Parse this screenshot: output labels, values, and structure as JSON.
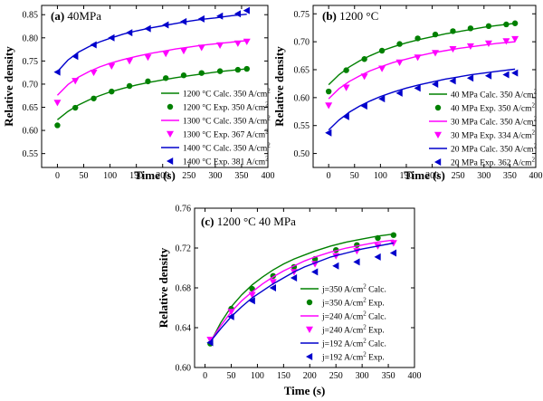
{
  "chart_data": [
    {
      "type": "line",
      "panel_label": "(a)",
      "title": "40MPa",
      "xlabel": "Time (s)",
      "ylabel": "Relative density",
      "xlim": [
        -30,
        400
      ],
      "ylim": [
        0.52,
        0.87
      ],
      "xticks": [
        0,
        50,
        100,
        150,
        200,
        250,
        300,
        350,
        400
      ],
      "yticks": [
        0.55,
        0.6,
        0.65,
        0.7,
        0.75,
        0.8,
        0.85
      ],
      "x_tick_labels": [
        "0",
        "50",
        "100",
        "150",
        "200",
        "250",
        "300",
        "350",
        "400"
      ],
      "y_tick_labels": [
        "0.55",
        "0.60",
        "0.65",
        "0.70",
        "0.75",
        "0.80",
        "0.85"
      ],
      "legend_position": "bottom-right",
      "series": [
        {
          "name": "1200 °C Calc. 350 A/cm²",
          "kind": "line",
          "color": "#008000",
          "x": [
            0,
            20,
            40,
            60,
            80,
            100,
            125,
            150,
            175,
            200,
            225,
            250,
            275,
            300,
            325,
            360
          ],
          "y": [
            0.623,
            0.641,
            0.655,
            0.666,
            0.675,
            0.683,
            0.691,
            0.698,
            0.704,
            0.709,
            0.714,
            0.718,
            0.722,
            0.726,
            0.729,
            0.733
          ]
        },
        {
          "name": "1200 °C Exp. 350 A/cm²",
          "kind": "marker",
          "marker": "circle",
          "color": "#008000",
          "x": [
            0,
            34,
            69,
            103,
            137,
            172,
            206,
            240,
            274,
            309,
            343,
            360
          ],
          "y": [
            0.611,
            0.649,
            0.669,
            0.684,
            0.696,
            0.706,
            0.713,
            0.719,
            0.724,
            0.728,
            0.731,
            0.733
          ]
        },
        {
          "name": "1300 °C Calc. 350 A/cm²",
          "kind": "line",
          "color": "#ff00ff",
          "x": [
            0,
            20,
            40,
            60,
            80,
            100,
            125,
            150,
            175,
            200,
            225,
            250,
            275,
            300,
            325,
            360
          ],
          "y": [
            0.676,
            0.699,
            0.715,
            0.727,
            0.737,
            0.745,
            0.753,
            0.76,
            0.766,
            0.771,
            0.776,
            0.78,
            0.784,
            0.787,
            0.79,
            0.794
          ]
        },
        {
          "name": "1300 °C Exp. 367 A/cm²",
          "kind": "marker",
          "marker": "triangle-down",
          "color": "#ff00ff",
          "x": [
            0,
            34,
            69,
            103,
            137,
            172,
            206,
            240,
            274,
            309,
            343,
            360
          ],
          "y": [
            0.66,
            0.707,
            0.725,
            0.739,
            0.75,
            0.758,
            0.766,
            0.772,
            0.779,
            0.784,
            0.788,
            0.792
          ]
        },
        {
          "name": "1400 °C Calc. 350 A/cm²",
          "kind": "line",
          "color": "#0000cc",
          "x": [
            0,
            20,
            40,
            60,
            80,
            100,
            125,
            150,
            175,
            200,
            225,
            250,
            275,
            300,
            325,
            360
          ],
          "y": [
            0.727,
            0.752,
            0.769,
            0.781,
            0.791,
            0.799,
            0.808,
            0.815,
            0.821,
            0.826,
            0.831,
            0.836,
            0.84,
            0.843,
            0.847,
            0.851
          ]
        },
        {
          "name": "1400 °C Exp. 381 A/cm²",
          "kind": "marker",
          "marker": "triangle-left",
          "color": "#0000cc",
          "x": [
            0,
            34,
            69,
            103,
            137,
            172,
            206,
            240,
            274,
            309,
            343,
            360
          ],
          "y": [
            0.726,
            0.76,
            0.785,
            0.8,
            0.811,
            0.82,
            0.828,
            0.835,
            0.841,
            0.847,
            0.852,
            0.859
          ]
        }
      ]
    },
    {
      "type": "line",
      "panel_label": "(b)",
      "title": "1200 °C",
      "xlabel": "Time (s)",
      "ylabel": "Relative density",
      "xlim": [
        -30,
        400
      ],
      "ylim": [
        0.475,
        0.765
      ],
      "xticks": [
        0,
        50,
        100,
        150,
        200,
        250,
        300,
        350,
        400
      ],
      "yticks": [
        0.5,
        0.55,
        0.6,
        0.65,
        0.7,
        0.75
      ],
      "x_tick_labels": [
        "0",
        "50",
        "100",
        "150",
        "200",
        "250",
        "300",
        "350",
        "400"
      ],
      "y_tick_labels": [
        "0.50",
        "0.55",
        "0.60",
        "0.65",
        "0.70",
        "0.75"
      ],
      "legend_position": "bottom-right",
      "series": [
        {
          "name": "40 MPa Calc. 350 A/cm²",
          "kind": "line",
          "color": "#008000",
          "x": [
            0,
            20,
            40,
            60,
            80,
            100,
            125,
            150,
            175,
            200,
            225,
            250,
            275,
            300,
            325,
            360
          ],
          "y": [
            0.623,
            0.641,
            0.655,
            0.666,
            0.675,
            0.683,
            0.691,
            0.698,
            0.704,
            0.709,
            0.714,
            0.718,
            0.722,
            0.726,
            0.729,
            0.733
          ]
        },
        {
          "name": "40 MPa Exp. 350 A/cm²",
          "kind": "marker",
          "marker": "circle",
          "color": "#008000",
          "x": [
            0,
            34,
            69,
            103,
            137,
            172,
            206,
            240,
            274,
            309,
            343,
            360
          ],
          "y": [
            0.611,
            0.649,
            0.669,
            0.684,
            0.696,
            0.706,
            0.713,
            0.719,
            0.724,
            0.728,
            0.731,
            0.733
          ]
        },
        {
          "name": "30 MPa Calc. 350 A/cm²",
          "kind": "line",
          "color": "#ff00ff",
          "x": [
            0,
            20,
            40,
            60,
            80,
            100,
            125,
            150,
            175,
            200,
            225,
            250,
            275,
            300,
            325,
            360
          ],
          "y": [
            0.598,
            0.616,
            0.629,
            0.639,
            0.648,
            0.655,
            0.663,
            0.669,
            0.675,
            0.68,
            0.684,
            0.688,
            0.691,
            0.694,
            0.697,
            0.7
          ]
        },
        {
          "name": "30 MPa Exp. 334 A/cm²",
          "kind": "marker",
          "marker": "triangle-down",
          "color": "#ff00ff",
          "x": [
            0,
            34,
            69,
            103,
            137,
            172,
            206,
            240,
            274,
            309,
            343,
            360
          ],
          "y": [
            0.586,
            0.618,
            0.638,
            0.652,
            0.663,
            0.672,
            0.68,
            0.687,
            0.692,
            0.697,
            0.701,
            0.705
          ]
        },
        {
          "name": "20 MPa Calc. 350 A/cm²",
          "kind": "line",
          "color": "#0000cc",
          "x": [
            0,
            20,
            40,
            60,
            80,
            100,
            125,
            150,
            175,
            200,
            225,
            250,
            275,
            300,
            325,
            360
          ],
          "y": [
            0.542,
            0.56,
            0.574,
            0.585,
            0.594,
            0.602,
            0.61,
            0.617,
            0.623,
            0.628,
            0.633,
            0.637,
            0.641,
            0.644,
            0.647,
            0.651
          ]
        },
        {
          "name": "20 MPa Exp. 362 A/cm²",
          "kind": "marker",
          "marker": "triangle-left",
          "color": "#0000cc",
          "x": [
            0,
            34,
            69,
            103,
            137,
            172,
            206,
            240,
            274,
            309,
            343,
            360
          ],
          "y": [
            0.537,
            0.566,
            0.585,
            0.598,
            0.608,
            0.617,
            0.624,
            0.63,
            0.635,
            0.639,
            0.641,
            0.644
          ]
        }
      ]
    },
    {
      "type": "line",
      "panel_label": "(c)",
      "title": "1200 °C 40 MPa",
      "xlabel": "Time (s)",
      "ylabel": "Relative density",
      "xlim": [
        -20,
        400
      ],
      "ylim": [
        0.6,
        0.76
      ],
      "xticks": [
        0,
        50,
        100,
        150,
        200,
        250,
        300,
        350,
        400
      ],
      "yticks": [
        0.6,
        0.64,
        0.68,
        0.72,
        0.76
      ],
      "x_tick_labels": [
        "0",
        "50",
        "100",
        "150",
        "200",
        "250",
        "300",
        "350",
        "400"
      ],
      "y_tick_labels": [
        "0.60",
        "0.64",
        "0.68",
        "0.72",
        "0.76"
      ],
      "legend_position": "bottom-right",
      "series": [
        {
          "name": "j=350 A/cm² Calc.",
          "kind": "line",
          "color": "#008000",
          "x": [
            10,
            30,
            50,
            70,
            90,
            110,
            130,
            150,
            170,
            190,
            210,
            240,
            270,
            300,
            330,
            360
          ],
          "y": [
            0.625,
            0.645,
            0.661,
            0.673,
            0.683,
            0.691,
            0.698,
            0.704,
            0.709,
            0.713,
            0.717,
            0.722,
            0.726,
            0.729,
            0.732,
            0.734
          ]
        },
        {
          "name": "j=350 A/cm² Exp.",
          "kind": "marker",
          "marker": "circle",
          "color": "#008000",
          "x": [
            10,
            50,
            90,
            130,
            170,
            210,
            250,
            290,
            330,
            360
          ],
          "y": [
            0.624,
            0.659,
            0.679,
            0.692,
            0.701,
            0.709,
            0.718,
            0.723,
            0.73,
            0.733
          ]
        },
        {
          "name": "j=240 A/cm² Calc.",
          "kind": "line",
          "color": "#ff00ff",
          "x": [
            10,
            30,
            50,
            70,
            90,
            110,
            130,
            150,
            170,
            190,
            210,
            240,
            270,
            300,
            330,
            360
          ],
          "y": [
            0.626,
            0.642,
            0.656,
            0.667,
            0.676,
            0.684,
            0.691,
            0.697,
            0.702,
            0.707,
            0.711,
            0.716,
            0.72,
            0.723,
            0.726,
            0.728
          ]
        },
        {
          "name": "j=240 A/cm² Exp.",
          "kind": "marker",
          "marker": "triangle-down",
          "color": "#ff00ff",
          "x": [
            10,
            50,
            90,
            130,
            170,
            210,
            250,
            290,
            330,
            360
          ],
          "y": [
            0.628,
            0.656,
            0.673,
            0.686,
            0.696,
            0.704,
            0.712,
            0.717,
            0.722,
            0.725
          ]
        },
        {
          "name": "j=192 A/cm² Calc.",
          "kind": "line",
          "color": "#0000cc",
          "x": [
            10,
            30,
            50,
            70,
            90,
            110,
            130,
            150,
            170,
            190,
            210,
            240,
            270,
            300,
            330,
            360
          ],
          "y": [
            0.626,
            0.639,
            0.651,
            0.661,
            0.67,
            0.677,
            0.684,
            0.69,
            0.696,
            0.701,
            0.705,
            0.711,
            0.715,
            0.719,
            0.722,
            0.725
          ]
        },
        {
          "name": "j=192 A/cm² Exp.",
          "kind": "marker",
          "marker": "triangle-left",
          "color": "#0000cc",
          "x": [
            10,
            50,
            90,
            130,
            170,
            210,
            250,
            290,
            330,
            360
          ],
          "y": [
            0.625,
            0.651,
            0.667,
            0.68,
            0.69,
            0.696,
            0.702,
            0.706,
            0.711,
            0.715
          ]
        }
      ]
    }
  ]
}
